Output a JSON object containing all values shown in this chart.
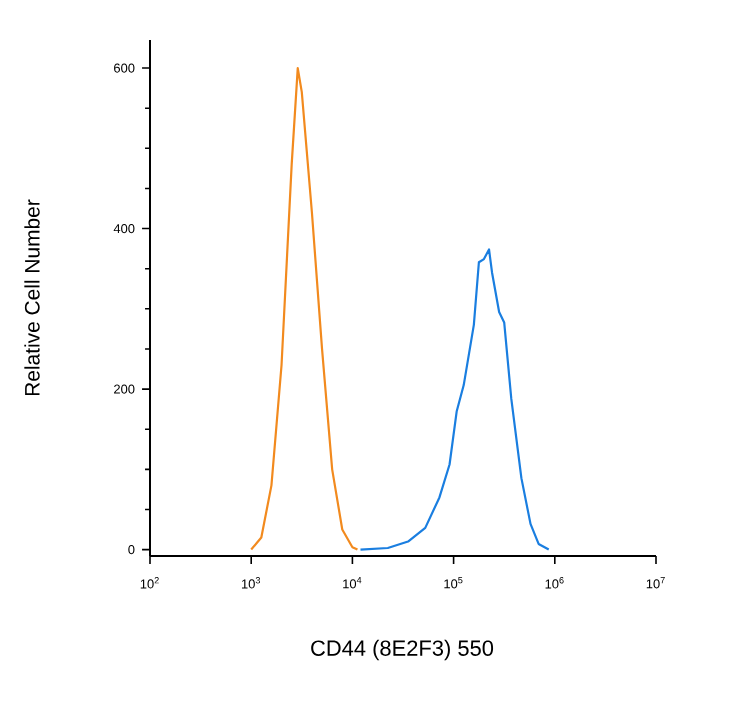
{
  "chart_data": {
    "type": "line",
    "log": "x",
    "xlabel": "CD44 (8E2F3) 550",
    "ylabel": "Relative Cell Number",
    "xlim": [
      100,
      10000000
    ],
    "ylim": [
      -8,
      635
    ],
    "xticks": [
      {
        "value": 100,
        "label": "10$^{2}$"
      },
      {
        "value": 1000,
        "label": "10$^{3}$"
      },
      {
        "value": 10000,
        "label": "10$^{4}$"
      },
      {
        "value": 100000,
        "label": "10$^{5}$"
      },
      {
        "value": 1000000,
        "label": "10$^{6}$"
      },
      {
        "value": 10000000,
        "label": "10$^{7}$"
      }
    ],
    "yticks": [
      0,
      200,
      400,
      600
    ],
    "marker": "none",
    "line_style": "solid",
    "series": [
      {
        "color": "#f28a1e",
        "x": [
          1000,
          1259,
          1585,
          1995,
          2512,
          2884,
          3162,
          3981,
          5012,
          6310,
          7943,
          10000,
          11220
        ],
        "values": [
          0,
          15,
          80,
          230,
          480,
          600,
          570,
          420,
          250,
          100,
          25,
          3,
          0
        ]
      },
      {
        "color": "#1a7ee0",
        "x": [
          12020,
          22390,
          35480,
          52480,
          72440,
          91200,
          107200,
          125900,
          158500,
          177800,
          199500,
          223900,
          239900,
          281800,
          316200,
          371500,
          467700,
          575400,
          691800,
          871000
        ],
        "values": [
          0,
          2,
          10,
          27,
          65,
          106,
          172,
          205,
          280,
          358,
          362,
          374,
          345,
          296,
          283,
          188,
          89,
          32,
          7,
          0
        ]
      }
    ]
  }
}
